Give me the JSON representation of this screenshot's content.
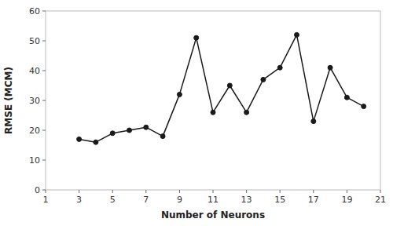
{
  "chart_data": {
    "type": "line",
    "x": [
      3,
      4,
      5,
      6,
      7,
      8,
      9,
      10,
      11,
      12,
      13,
      14,
      15,
      16,
      17,
      18,
      19,
      20
    ],
    "values": [
      17,
      16,
      19,
      20,
      21,
      18,
      32,
      51,
      26,
      35,
      26,
      37,
      41,
      52,
      23,
      41,
      31,
      28
    ],
    "xlabel": "Number of Neurons",
    "ylabel": "RMSE (MCM)",
    "xlim": [
      1,
      21
    ],
    "ylim": [
      0,
      60
    ],
    "xticks": [
      1,
      3,
      5,
      7,
      9,
      11,
      13,
      15,
      17,
      19,
      21
    ],
    "yticks": [
      0,
      10,
      20,
      30,
      40,
      50,
      60
    ],
    "color": "#1a1a1a",
    "marker": "circle",
    "grid": false
  }
}
